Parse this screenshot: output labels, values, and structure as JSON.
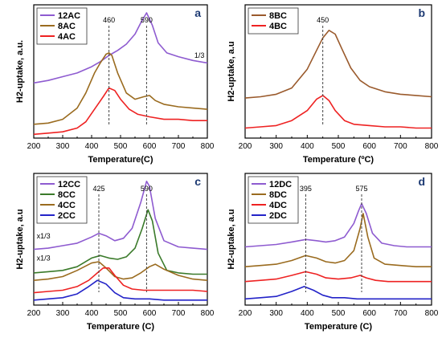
{
  "chart_data": [
    {
      "id": "a",
      "type": "line",
      "panel_letter": "a",
      "xlabel": "Temperature(C)",
      "ylabel": "H2-uptake, a.u.",
      "xlim": [
        200,
        800
      ],
      "xticks": [
        "200",
        "300",
        "400",
        "500",
        "600",
        "700",
        "800"
      ],
      "ylim": [
        0,
        1
      ],
      "legend_position": "top-left",
      "peak_lines": [
        {
          "x": 460,
          "label": "460"
        },
        {
          "x": 590,
          "label": "590"
        }
      ],
      "annotations": [
        {
          "text": "1/3",
          "x": 790,
          "y": 0.64,
          "anchor": "end"
        }
      ],
      "series": [
        {
          "name": "12AC",
          "color": "#8e5bd0",
          "x": [
            200,
            250,
            300,
            350,
            400,
            430,
            460,
            490,
            520,
            550,
            570,
            590,
            610,
            630,
            660,
            700,
            750,
            800
          ],
          "y": [
            0.44,
            0.46,
            0.49,
            0.52,
            0.57,
            0.61,
            0.66,
            0.7,
            0.75,
            0.83,
            0.92,
            1.0,
            0.9,
            0.76,
            0.68,
            0.65,
            0.62,
            0.6
          ]
        },
        {
          "name": "8AC",
          "color": "#9a6b1f",
          "x": [
            200,
            250,
            300,
            350,
            380,
            410,
            430,
            450,
            460,
            470,
            490,
            520,
            550,
            580,
            600,
            620,
            650,
            700,
            750,
            800
          ],
          "y": [
            0.11,
            0.12,
            0.15,
            0.24,
            0.36,
            0.52,
            0.6,
            0.67,
            0.68,
            0.66,
            0.52,
            0.36,
            0.31,
            0.33,
            0.34,
            0.3,
            0.27,
            0.25,
            0.24,
            0.23
          ]
        },
        {
          "name": "4AC",
          "color": "#ee2222",
          "x": [
            200,
            250,
            300,
            350,
            380,
            410,
            440,
            460,
            480,
            500,
            530,
            560,
            600,
            650,
            700,
            750,
            800
          ],
          "y": [
            0.03,
            0.04,
            0.05,
            0.08,
            0.13,
            0.23,
            0.33,
            0.4,
            0.38,
            0.31,
            0.23,
            0.19,
            0.17,
            0.15,
            0.15,
            0.14,
            0.14
          ]
        }
      ]
    },
    {
      "id": "b",
      "type": "line",
      "panel_letter": "b",
      "xlabel": "Temperature (ºC)",
      "ylabel": "H2-uptake, a.u",
      "xlim": [
        200,
        800
      ],
      "xticks": [
        "200",
        "300",
        "400",
        "500",
        "600",
        "700",
        "800"
      ],
      "ylim": [
        0,
        1
      ],
      "legend_position": "top-left",
      "peak_lines": [
        {
          "x": 450,
          "label": "450"
        }
      ],
      "annotations": [],
      "series": [
        {
          "name": "8BC",
          "color": "#9a5a2c",
          "x": [
            200,
            250,
            300,
            350,
            400,
            430,
            450,
            470,
            490,
            510,
            540,
            570,
            600,
            650,
            700,
            750,
            800
          ],
          "y": [
            0.32,
            0.33,
            0.35,
            0.4,
            0.55,
            0.7,
            0.8,
            0.86,
            0.83,
            0.72,
            0.56,
            0.46,
            0.41,
            0.37,
            0.35,
            0.34,
            0.33
          ]
        },
        {
          "name": "4BC",
          "color": "#ee2222",
          "x": [
            200,
            250,
            300,
            350,
            400,
            430,
            450,
            470,
            490,
            520,
            550,
            600,
            650,
            700,
            750,
            800
          ],
          "y": [
            0.08,
            0.09,
            0.1,
            0.14,
            0.22,
            0.31,
            0.34,
            0.3,
            0.22,
            0.14,
            0.11,
            0.1,
            0.09,
            0.09,
            0.08,
            0.08
          ]
        }
      ]
    },
    {
      "id": "c",
      "type": "line",
      "panel_letter": "c",
      "xlabel": "Temperature (C)",
      "ylabel": "H2-uptake, a.u",
      "xlim": [
        200,
        800
      ],
      "xticks": [
        "200",
        "300",
        "400",
        "500",
        "600",
        "700",
        "800"
      ],
      "ylim": [
        0,
        1
      ],
      "legend_position": "top-left",
      "peak_lines": [
        {
          "x": 425,
          "label": "425"
        },
        {
          "x": 590,
          "label": "590"
        }
      ],
      "annotations": [
        {
          "text": "x1/3",
          "x": 210,
          "y": 0.54,
          "anchor": "start"
        },
        {
          "text": "x1/3",
          "x": 210,
          "y": 0.36,
          "anchor": "start"
        }
      ],
      "series": [
        {
          "name": "12CC",
          "color": "#8e5bd0",
          "x": [
            200,
            250,
            300,
            350,
            400,
            425,
            450,
            480,
            510,
            540,
            570,
            590,
            600,
            620,
            650,
            700,
            750,
            800
          ],
          "y": [
            0.45,
            0.46,
            0.48,
            0.5,
            0.55,
            0.58,
            0.56,
            0.52,
            0.54,
            0.62,
            0.83,
            1.0,
            0.96,
            0.7,
            0.52,
            0.47,
            0.46,
            0.45
          ]
        },
        {
          "name": "8CC",
          "color": "#3a7a2a",
          "x": [
            200,
            250,
            300,
            350,
            400,
            430,
            460,
            490,
            520,
            550,
            575,
            595,
            610,
            630,
            660,
            700,
            750,
            800
          ],
          "y": [
            0.26,
            0.27,
            0.28,
            0.31,
            0.38,
            0.4,
            0.38,
            0.37,
            0.39,
            0.46,
            0.62,
            0.77,
            0.68,
            0.42,
            0.28,
            0.26,
            0.25,
            0.25
          ]
        },
        {
          "name": "4CC",
          "color": "#9a6b1f",
          "x": [
            200,
            250,
            300,
            350,
            400,
            425,
            450,
            480,
            510,
            540,
            570,
            600,
            620,
            650,
            700,
            750,
            800
          ],
          "y": [
            0.2,
            0.21,
            0.23,
            0.28,
            0.34,
            0.35,
            0.3,
            0.23,
            0.21,
            0.22,
            0.26,
            0.31,
            0.33,
            0.29,
            0.24,
            0.21,
            0.2
          ]
        },
        {
          "name": "2CC",
          "color": "#2323c8",
          "x": [
            200,
            250,
            300,
            350,
            390,
            420,
            450,
            480,
            510,
            550,
            600,
            650,
            700,
            750,
            800
          ],
          "y": [
            0.04,
            0.05,
            0.06,
            0.09,
            0.15,
            0.2,
            0.17,
            0.1,
            0.06,
            0.05,
            0.05,
            0.04,
            0.04,
            0.04,
            0.04
          ]
        },
        {
          "name": "",
          "color": "#ee2222",
          "x": [
            200,
            250,
            300,
            350,
            390,
            420,
            440,
            460,
            480,
            510,
            540,
            580,
            620,
            660,
            700,
            750,
            800
          ],
          "y": [
            0.1,
            0.11,
            0.12,
            0.15,
            0.2,
            0.26,
            0.3,
            0.3,
            0.24,
            0.16,
            0.13,
            0.12,
            0.12,
            0.12,
            0.12,
            0.12,
            0.11
          ]
        }
      ]
    },
    {
      "id": "d",
      "type": "line",
      "panel_letter": "d",
      "xlabel": "Temperature (C)",
      "ylabel": "H2-uptake, a.u",
      "xlim": [
        200,
        800
      ],
      "xticks": [
        "200",
        "300",
        "400",
        "500",
        "600",
        "700",
        "800"
      ],
      "ylim": [
        0,
        1
      ],
      "legend_position": "top-left",
      "peak_lines": [
        {
          "x": 395,
          "label": "395"
        },
        {
          "x": 575,
          "label": "575"
        }
      ],
      "annotations": [],
      "series": [
        {
          "name": "12DC",
          "color": "#8e5bd0",
          "x": [
            200,
            250,
            300,
            350,
            395,
            430,
            460,
            490,
            520,
            550,
            565,
            575,
            590,
            610,
            640,
            680,
            720,
            760,
            800
          ],
          "y": [
            0.47,
            0.48,
            0.49,
            0.51,
            0.53,
            0.52,
            0.51,
            0.52,
            0.55,
            0.66,
            0.76,
            0.82,
            0.74,
            0.58,
            0.5,
            0.48,
            0.47,
            0.47,
            0.47
          ]
        },
        {
          "name": "8DC",
          "color": "#9a6b1f",
          "x": [
            200,
            250,
            300,
            350,
            395,
            430,
            460,
            490,
            520,
            550,
            570,
            580,
            595,
            615,
            650,
            700,
            750,
            800
          ],
          "y": [
            0.31,
            0.32,
            0.33,
            0.36,
            0.4,
            0.38,
            0.35,
            0.34,
            0.36,
            0.44,
            0.62,
            0.74,
            0.55,
            0.38,
            0.33,
            0.32,
            0.31,
            0.31
          ]
        },
        {
          "name": "4DC",
          "color": "#ee2222",
          "x": [
            200,
            250,
            300,
            350,
            395,
            430,
            460,
            500,
            540,
            570,
            590,
            620,
            660,
            700,
            750,
            800
          ],
          "y": [
            0.19,
            0.2,
            0.21,
            0.24,
            0.27,
            0.25,
            0.22,
            0.21,
            0.22,
            0.24,
            0.22,
            0.2,
            0.19,
            0.19,
            0.19,
            0.19
          ]
        },
        {
          "name": "2DC",
          "color": "#2323c8",
          "x": [
            200,
            250,
            300,
            350,
            390,
            420,
            450,
            480,
            520,
            560,
            600,
            650,
            700,
            750,
            800
          ],
          "y": [
            0.05,
            0.06,
            0.07,
            0.11,
            0.15,
            0.12,
            0.08,
            0.06,
            0.06,
            0.05,
            0.05,
            0.05,
            0.05,
            0.05,
            0.05
          ]
        }
      ]
    }
  ]
}
